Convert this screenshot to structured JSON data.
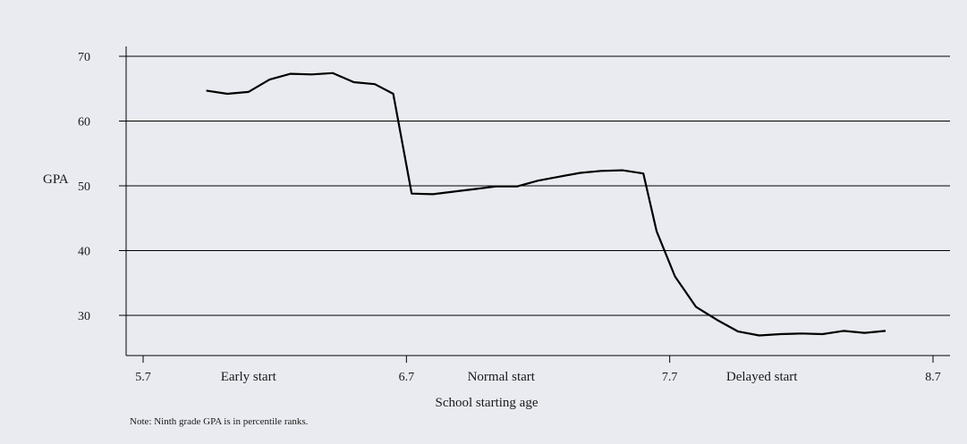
{
  "chart_data": {
    "type": "line",
    "xlabel": "School starting age",
    "ylabel": "GPA",
    "xlim": [
      5.7,
      8.7
    ],
    "ylim": [
      25,
      72
    ],
    "xticks": [
      {
        "value": 5.7,
        "label": "5.7"
      },
      {
        "value": 6.7,
        "label": "6.7"
      },
      {
        "value": 7.7,
        "label": "7.7"
      },
      {
        "value": 8.7,
        "label": "8.7"
      }
    ],
    "yticks": [
      30,
      40,
      50,
      60,
      70
    ],
    "ytick_labels": [
      "30",
      "40",
      "50",
      "60",
      "70"
    ],
    "grid": "horizontal",
    "region_labels": [
      {
        "text": "Early start",
        "x": 6.1
      },
      {
        "text": "Normal start",
        "x": 7.06
      },
      {
        "text": "Delayed start",
        "x": 8.05
      }
    ],
    "note": "Note: Ninth grade GPA is in percentile ranks.",
    "series": [
      {
        "color": "#000000",
        "x": [
          5.94,
          6.02,
          6.1,
          6.18,
          6.26,
          6.34,
          6.42,
          6.5,
          6.58,
          6.65,
          6.72,
          6.8,
          6.88,
          6.96,
          7.04,
          7.12,
          7.2,
          7.28,
          7.36,
          7.44,
          7.52,
          7.6,
          7.65,
          7.72,
          7.8,
          7.88,
          7.96,
          8.04,
          8.12,
          8.2,
          8.28,
          8.36,
          8.44,
          8.52
        ],
        "y": [
          64.7,
          64.2,
          64.5,
          66.4,
          67.3,
          67.2,
          67.4,
          66,
          65.7,
          64.2,
          48.8,
          48.7,
          49.1,
          49.5,
          49.9,
          49.9,
          50.8,
          51.4,
          52.0,
          52.3,
          52.4,
          51.9,
          43,
          36,
          31.3,
          29.3,
          27.5,
          26.9,
          27.1,
          27.2,
          27.1,
          27.6,
          27.3,
          27.6
        ]
      }
    ]
  }
}
